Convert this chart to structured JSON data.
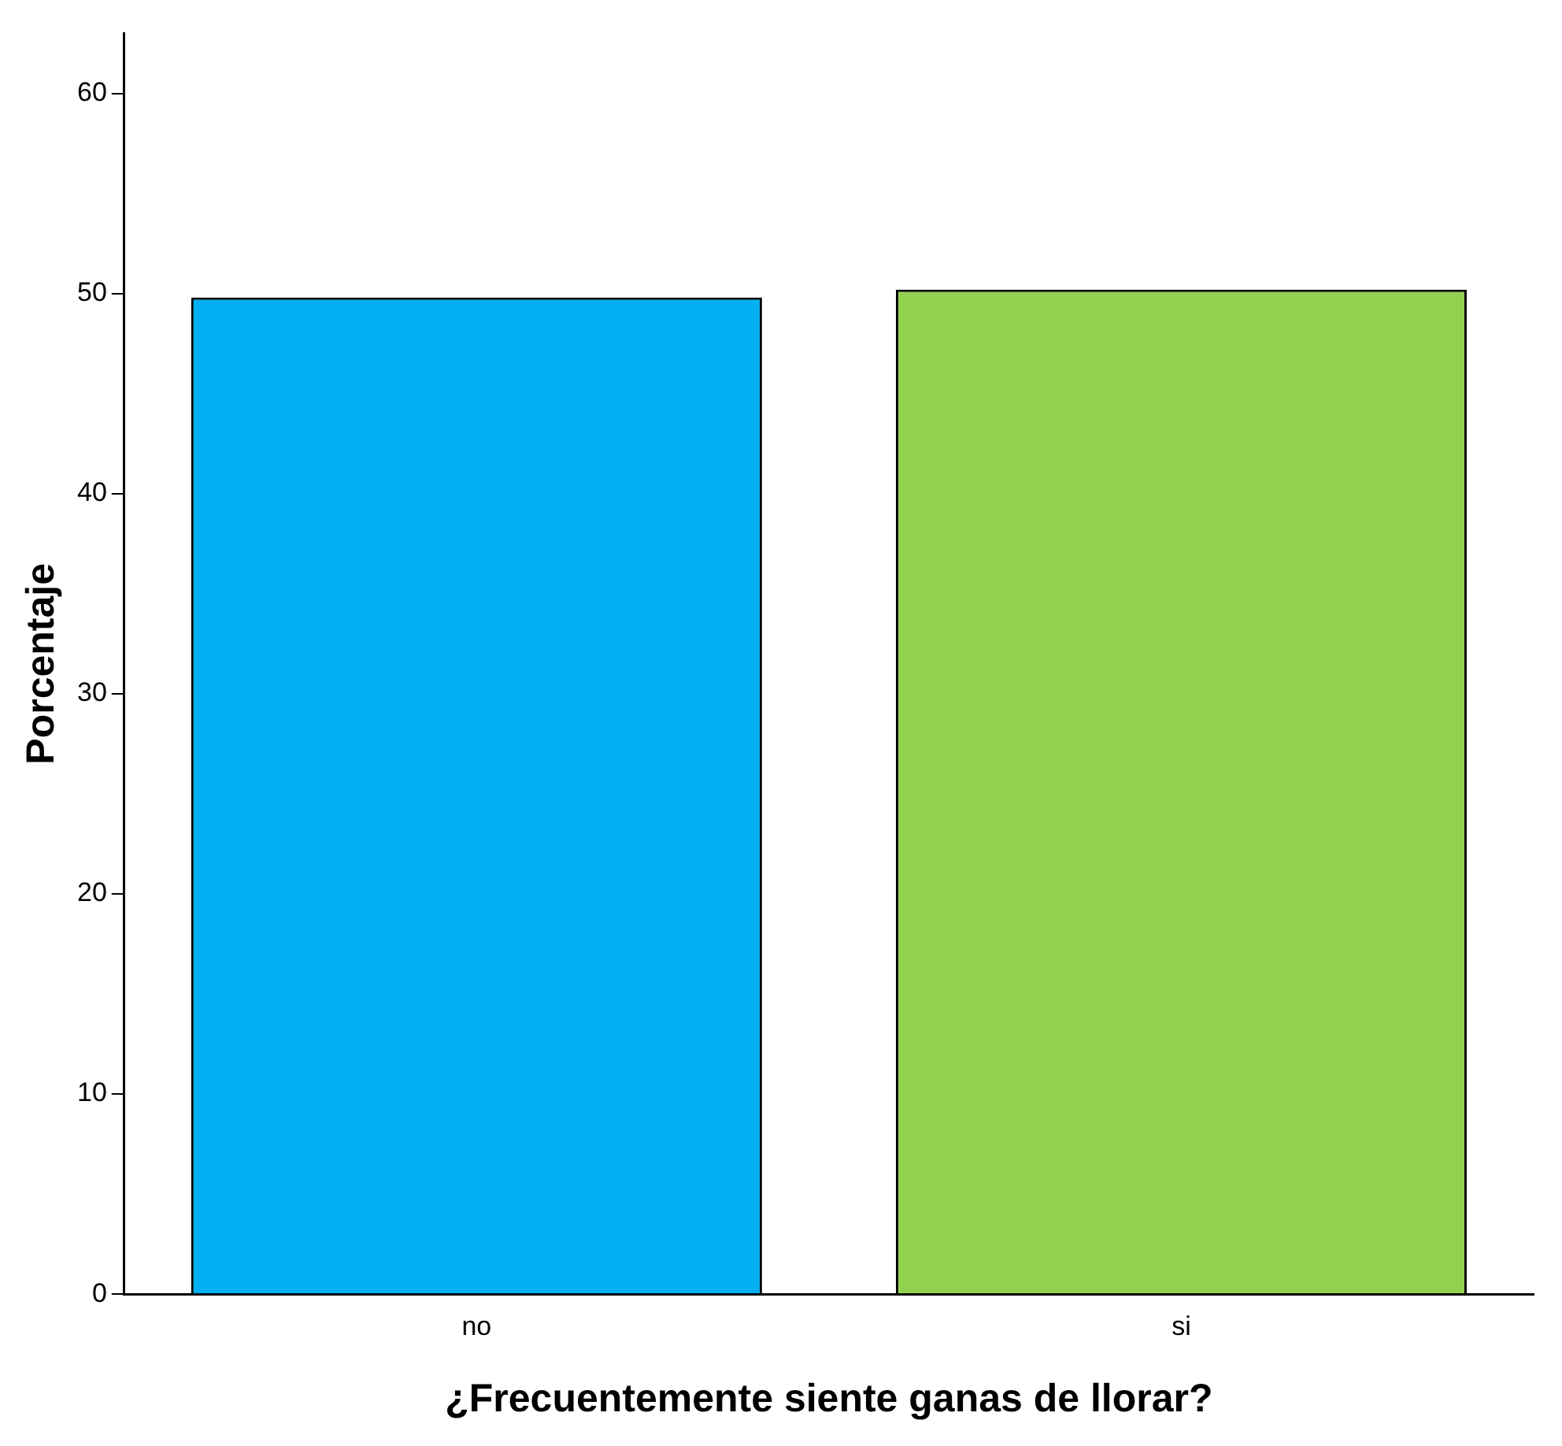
{
  "chart_data": {
    "type": "bar",
    "xlabel": "¿Frecuentemente siente ganas de llorar?",
    "ylabel": "Porcentaje",
    "categories": [
      "no",
      "si"
    ],
    "values": [
      49.8,
      50.2
    ],
    "colors": [
      "#00b0f0",
      "#92d050"
    ],
    "ylim": [
      0,
      63
    ],
    "yticks": [
      0,
      10,
      20,
      30,
      40,
      50,
      60
    ],
    "grid": false,
    "legend": false
  }
}
